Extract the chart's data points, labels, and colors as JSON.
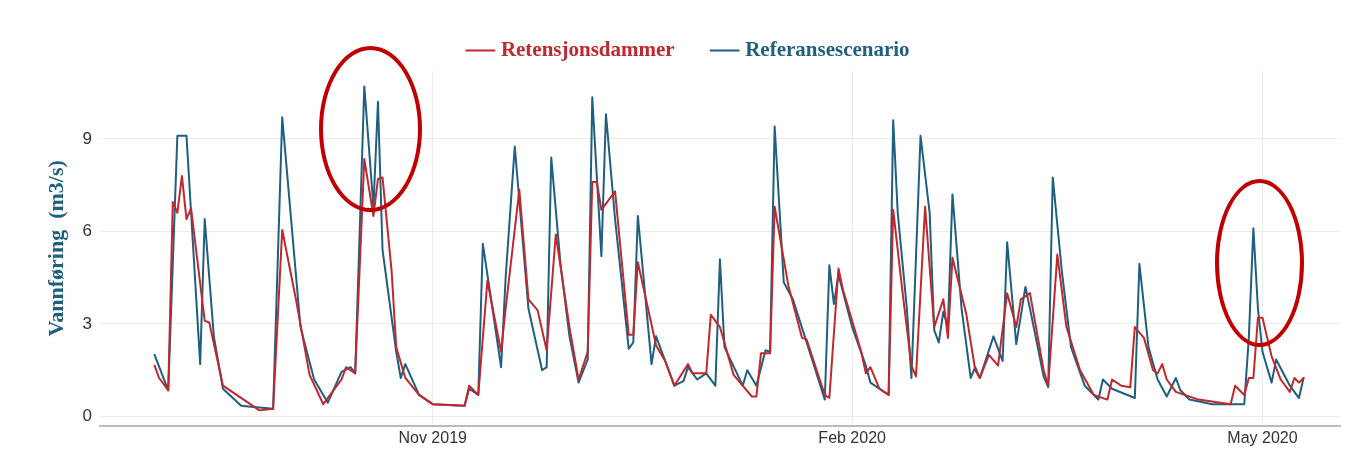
{
  "chart_data": {
    "type": "line",
    "ylabel": "Vannføring  (m3/s)",
    "xlim": [
      "2019-08-20",
      "2020-05-18"
    ],
    "xticks": [
      {
        "value": "2019-11-01",
        "label": "Nov 2019"
      },
      {
        "value": "2020-02-01",
        "label": "Feb 2020"
      },
      {
        "value": "2020-05-01",
        "label": "May 2020"
      }
    ],
    "ylim": [
      -0.3,
      11.2
    ],
    "yticks": [
      0,
      3,
      6,
      9
    ],
    "grid": true,
    "legend": "top",
    "marker": "none",
    "line_style": "solid",
    "series": [
      {
        "name": "Retensjonsdammer",
        "color": "#c0282d",
        "x": [
          "2019-09-01",
          "2019-09-02",
          "2019-09-04",
          "2019-09-05",
          "2019-09-06",
          "2019-09-07",
          "2019-09-08",
          "2019-09-09",
          "2019-09-12",
          "2019-09-13",
          "2019-09-16",
          "2019-09-24",
          "2019-09-27",
          "2019-09-29",
          "2019-10-02",
          "2019-10-05",
          "2019-10-08",
          "2019-10-12",
          "2019-10-13",
          "2019-10-15",
          "2019-10-17",
          "2019-10-19",
          "2019-10-20",
          "2019-10-21",
          "2019-10-23",
          "2019-10-24",
          "2019-10-26",
          "2019-10-29",
          "2019-11-01",
          "2019-11-08",
          "2019-11-09",
          "2019-11-11",
          "2019-11-13",
          "2019-11-16",
          "2019-11-17",
          "2019-11-20",
          "2019-11-22",
          "2019-11-24",
          "2019-11-26",
          "2019-11-28",
          "2019-12-01",
          "2019-12-03",
          "2019-12-05",
          "2019-12-06",
          "2019-12-07",
          "2019-12-08",
          "2019-12-11",
          "2019-12-14",
          "2019-12-15",
          "2019-12-16",
          "2019-12-20",
          "2019-12-22",
          "2019-12-24",
          "2019-12-27",
          "2019-12-28",
          "2019-12-31",
          "2020-01-01",
          "2020-01-02",
          "2020-01-03",
          "2020-01-06",
          "2020-01-10",
          "2020-01-11",
          "2020-01-12",
          "2020-01-14",
          "2020-01-15",
          "2020-01-18",
          "2020-01-21",
          "2020-01-22",
          "2020-01-26",
          "2020-01-27",
          "2020-01-29",
          "2020-01-30",
          "2020-02-03",
          "2020-02-04",
          "2020-02-05",
          "2020-02-07",
          "2020-02-09",
          "2020-02-10",
          "2020-02-12",
          "2020-02-14",
          "2020-02-15",
          "2020-02-17",
          "2020-02-19",
          "2020-02-21",
          "2020-02-22",
          "2020-02-23",
          "2020-02-26",
          "2020-02-28",
          "2020-02-29",
          "2020-03-02",
          "2020-03-04",
          "2020-03-06",
          "2020-03-08",
          "2020-03-09",
          "2020-03-11",
          "2020-03-14",
          "2020-03-15",
          "2020-03-17",
          "2020-03-19",
          "2020-03-22",
          "2020-03-25",
          "2020-03-28",
          "2020-03-29",
          "2020-03-31",
          "2020-04-02",
          "2020-04-03",
          "2020-04-05",
          "2020-04-07",
          "2020-04-08",
          "2020-04-09",
          "2020-04-10",
          "2020-04-12",
          "2020-04-17",
          "2020-04-24",
          "2020-04-25",
          "2020-04-27",
          "2020-04-28",
          "2020-04-29",
          "2020-04-30",
          "2020-05-01",
          "2020-05-03",
          "2020-05-05",
          "2020-05-07",
          "2020-05-08",
          "2020-05-09",
          "2020-05-10"
        ],
        "values": [
          1.65,
          1.25,
          0.85,
          6.95,
          6.6,
          7.8,
          6.4,
          6.75,
          3.1,
          3.05,
          1.0,
          0.2,
          0.25,
          6.05,
          3.8,
          1.35,
          0.4,
          1.2,
          1.6,
          1.4,
          8.35,
          6.5,
          7.7,
          7.75,
          4.7,
          2.25,
          1.25,
          0.7,
          0.4,
          0.35,
          1.0,
          0.7,
          4.4,
          2.1,
          3.5,
          7.35,
          3.8,
          3.45,
          2.15,
          5.9,
          2.9,
          1.2,
          2.1,
          7.6,
          7.6,
          6.7,
          7.3,
          2.65,
          2.65,
          5.0,
          2.3,
          1.8,
          1.0,
          1.7,
          1.4,
          1.4,
          3.3,
          3.1,
          2.9,
          1.35,
          0.65,
          0.65,
          2.05,
          2.05,
          6.8,
          4.25,
          2.55,
          2.5,
          0.7,
          0.6,
          4.8,
          4.1,
          2.1,
          1.4,
          1.6,
          0.9,
          0.7,
          6.7,
          4.1,
          1.65,
          1.3,
          6.8,
          2.9,
          3.8,
          2.55,
          5.15,
          3.35,
          1.5,
          1.25,
          2.0,
          1.65,
          4.0,
          2.9,
          3.8,
          4.0,
          1.5,
          1.0,
          5.25,
          2.9,
          1.5,
          0.7,
          0.55,
          1.2,
          1.0,
          0.95,
          2.9,
          2.55,
          1.5,
          1.4,
          1.7,
          1.2,
          0.8,
          0.55,
          0.4,
          1.0,
          0.7,
          1.25,
          1.25,
          3.2,
          3.2,
          1.95,
          1.2,
          0.8,
          1.25,
          1.1,
          1.25
        ]
      },
      {
        "name": "Referansescenario",
        "color": "#1f5f7f",
        "x": [
          "2019-09-01",
          "2019-09-04",
          "2019-09-06",
          "2019-09-08",
          "2019-09-11",
          "2019-09-12",
          "2019-09-14",
          "2019-09-16",
          "2019-09-20",
          "2019-09-27",
          "2019-09-29",
          "2019-10-01",
          "2019-10-03",
          "2019-10-06",
          "2019-10-09",
          "2019-10-12",
          "2019-10-14",
          "2019-10-15",
          "2019-10-17",
          "2019-10-19",
          "2019-10-20",
          "2019-10-21",
          "2019-10-24",
          "2019-10-25",
          "2019-10-26",
          "2019-10-29",
          "2019-11-01",
          "2019-11-08",
          "2019-11-09",
          "2019-11-11",
          "2019-11-12",
          "2019-11-16",
          "2019-11-17",
          "2019-11-19",
          "2019-11-22",
          "2019-11-25",
          "2019-11-26",
          "2019-11-27",
          "2019-11-29",
          "2019-12-01",
          "2019-12-03",
          "2019-12-05",
          "2019-12-06",
          "2019-12-08",
          "2019-12-09",
          "2019-12-11",
          "2019-12-14",
          "2019-12-15",
          "2019-12-16",
          "2019-12-19",
          "2019-12-20",
          "2019-12-24",
          "2019-12-26",
          "2019-12-27",
          "2019-12-29",
          "2019-12-31",
          "2020-01-02",
          "2020-01-03",
          "2020-01-04",
          "2020-01-08",
          "2020-01-09",
          "2020-01-11",
          "2020-01-13",
          "2020-01-14",
          "2020-01-15",
          "2020-01-17",
          "2020-01-19",
          "2020-01-23",
          "2020-01-26",
          "2020-01-27",
          "2020-01-28",
          "2020-01-29",
          "2020-02-01",
          "2020-02-04",
          "2020-02-05",
          "2020-02-09",
          "2020-02-10",
          "2020-02-11",
          "2020-02-13",
          "2020-02-14",
          "2020-02-16",
          "2020-02-18",
          "2020-02-19",
          "2020-02-20",
          "2020-02-21",
          "2020-02-22",
          "2020-02-23",
          "2020-02-25",
          "2020-02-27",
          "2020-02-28",
          "2020-02-29",
          "2020-03-03",
          "2020-03-05",
          "2020-03-06",
          "2020-03-08",
          "2020-03-10",
          "2020-03-11",
          "2020-03-14",
          "2020-03-15",
          "2020-03-16",
          "2020-03-18",
          "2020-03-20",
          "2020-03-23",
          "2020-03-26",
          "2020-03-27",
          "2020-03-29",
          "2020-04-03",
          "2020-04-04",
          "2020-04-06",
          "2020-04-08",
          "2020-04-10",
          "2020-04-12",
          "2020-04-13",
          "2020-04-15",
          "2020-04-20",
          "2020-04-27",
          "2020-04-28",
          "2020-04-29",
          "2020-04-30",
          "2020-05-01",
          "2020-05-03",
          "2020-05-04",
          "2020-05-07",
          "2020-05-09",
          "2020-05-10"
        ],
        "values": [
          2.0,
          0.85,
          9.1,
          9.1,
          1.7,
          6.4,
          2.6,
          0.9,
          0.35,
          0.25,
          9.7,
          6.3,
          2.9,
          1.2,
          0.45,
          1.45,
          1.6,
          1.4,
          10.7,
          6.8,
          10.2,
          5.4,
          2.1,
          1.25,
          1.7,
          0.7,
          0.4,
          0.35,
          0.9,
          0.7,
          5.6,
          1.6,
          4.5,
          8.75,
          3.5,
          1.5,
          1.6,
          8.4,
          5.0,
          2.6,
          1.1,
          1.85,
          10.35,
          5.2,
          9.8,
          6.4,
          2.2,
          2.4,
          6.5,
          1.7,
          2.6,
          1.0,
          1.15,
          1.6,
          1.2,
          1.4,
          1.0,
          5.1,
          2.25,
          1.0,
          1.5,
          1.0,
          2.15,
          2.1,
          9.4,
          4.35,
          3.8,
          1.95,
          0.55,
          4.9,
          3.65,
          4.6,
          2.9,
          1.65,
          1.1,
          0.7,
          9.6,
          6.6,
          3.5,
          1.25,
          9.1,
          6.6,
          2.8,
          2.4,
          3.4,
          2.9,
          7.2,
          3.5,
          1.25,
          1.6,
          1.25,
          2.6,
          1.8,
          5.65,
          2.35,
          4.2,
          3.5,
          1.3,
          0.95,
          7.75,
          4.7,
          2.25,
          1.0,
          0.55,
          1.2,
          0.9,
          0.6,
          4.95,
          2.25,
          1.2,
          0.65,
          1.25,
          0.85,
          0.55,
          0.4,
          0.4,
          2.55,
          6.1,
          3.5,
          2.1,
          1.1,
          1.85,
          1.0,
          0.6,
          1.25
        ]
      }
    ]
  }
}
